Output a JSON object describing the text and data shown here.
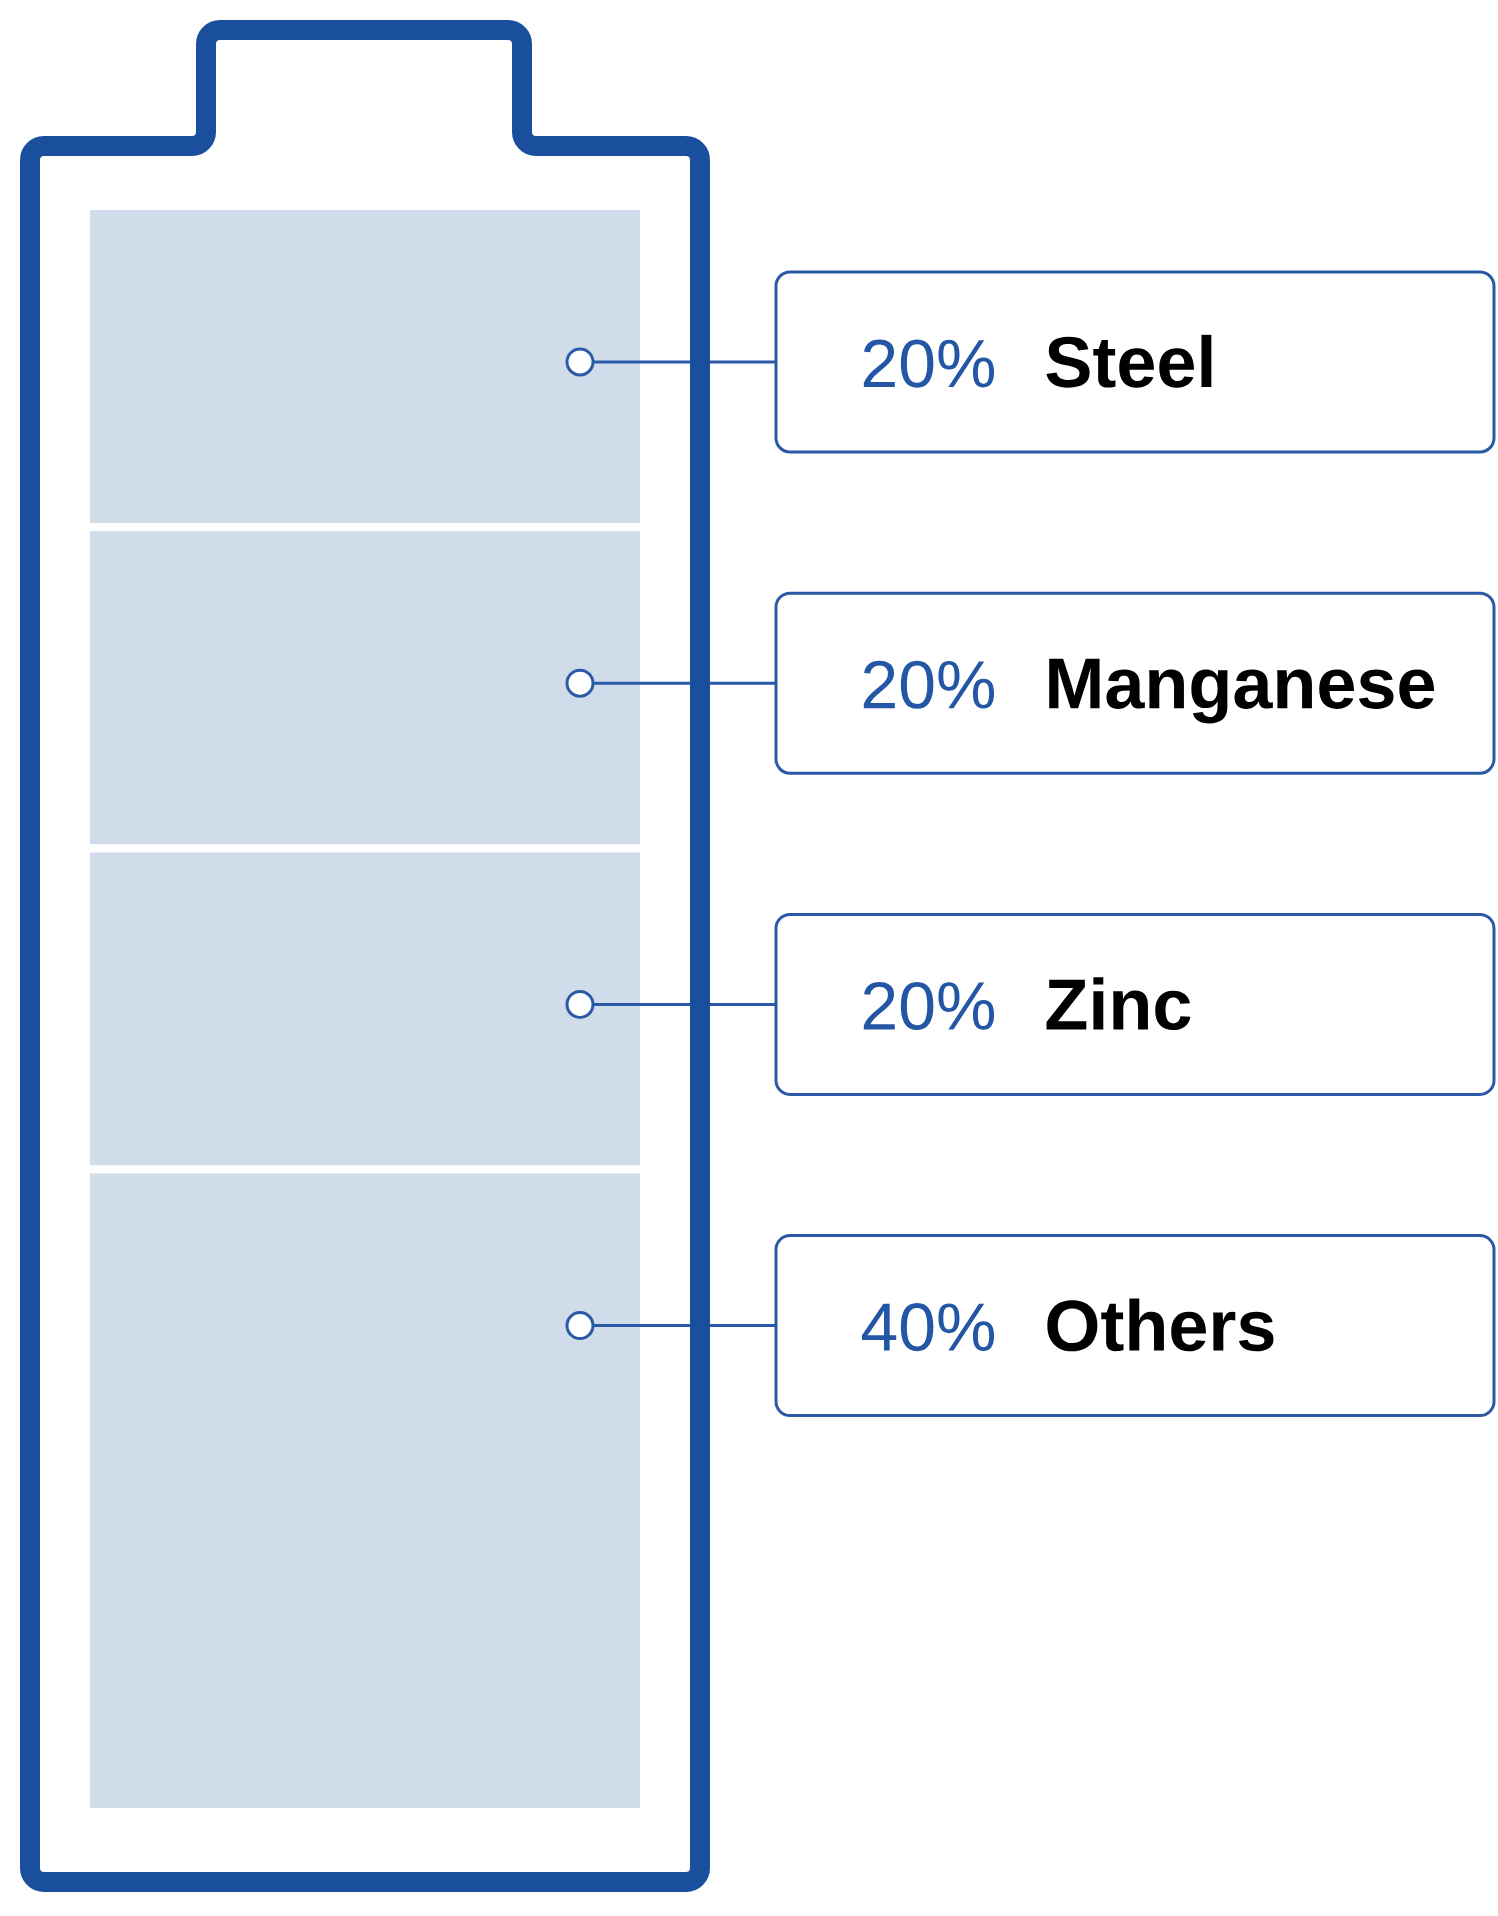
{
  "chart_data": {
    "type": "bar",
    "stacked": true,
    "categories": [
      null
    ],
    "tick_labels": false,
    "series": [
      {
        "name": "Others",
        "color": "#d0dcea",
        "values": [
          40
        ],
        "value_labels": [
          "40%"
        ]
      },
      {
        "name": "Zinc",
        "color": "#d0dcea",
        "values": [
          20
        ],
        "value_labels": [
          "20%"
        ]
      },
      {
        "name": "Manganese",
        "color": "#d0dcea",
        "values": [
          20
        ],
        "value_labels": [
          "20%"
        ]
      },
      {
        "name": "Steel",
        "color": "#d0dcea",
        "values": [
          20
        ],
        "value_labels": [
          "20%"
        ]
      }
    ]
  }
}
